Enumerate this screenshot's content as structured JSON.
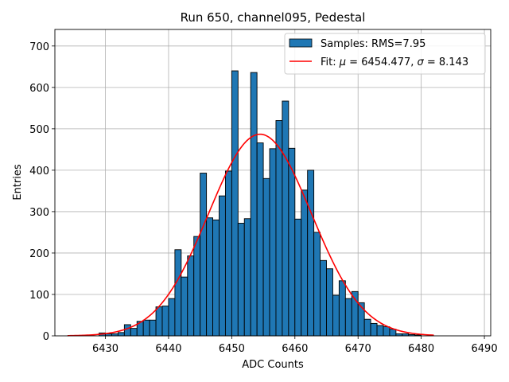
{
  "chart_data": {
    "type": "histogram",
    "title": "Run 650, channel095, Pedestal",
    "xlabel": "ADC Counts",
    "ylabel": "Entries",
    "xlim": [
      6422,
      6491
    ],
    "ylim": [
      0,
      740
    ],
    "xticks": [
      6430,
      6440,
      6450,
      6460,
      6470,
      6480,
      6490
    ],
    "yticks": [
      0,
      100,
      200,
      300,
      400,
      500,
      600,
      700
    ],
    "grid": true,
    "legend_position": "top-right",
    "bin_width": 1,
    "bin_starts": [
      6429,
      6430,
      6431,
      6432,
      6433,
      6434,
      6435,
      6436,
      6437,
      6438,
      6439,
      6440,
      6441,
      6442,
      6443,
      6444,
      6445,
      6446,
      6447,
      6448,
      6449,
      6450,
      6451,
      6452,
      6453,
      6454,
      6455,
      6456,
      6457,
      6458,
      6459,
      6460,
      6461,
      6462,
      6463,
      6464,
      6465,
      6466,
      6467,
      6468,
      6469,
      6470,
      6471,
      6472,
      6473,
      6474,
      6475,
      6476,
      6477,
      6478,
      6479
    ],
    "counts": [
      7,
      5,
      5,
      8,
      27,
      18,
      35,
      38,
      38,
      70,
      72,
      90,
      208,
      142,
      193,
      240,
      393,
      285,
      280,
      338,
      398,
      640,
      272,
      283,
      636,
      466,
      380,
      452,
      520,
      567,
      453,
      282,
      352,
      400,
      250,
      182,
      162,
      98,
      133,
      90,
      107,
      80,
      40,
      30,
      25,
      22,
      16,
      5,
      5,
      3,
      2
    ],
    "series": [
      {
        "name": "Samples: RMS=7.95",
        "kind": "histogram",
        "color": "#1f77b4",
        "edgecolor": "#000000"
      },
      {
        "name": "Fit: μ = 6454.477, σ = 8.143",
        "kind": "gaussian-fit",
        "color": "#ff0000",
        "mu": 6454.477,
        "sigma": 8.143,
        "amplitude": 487,
        "x_range": [
          6424,
          6482
        ]
      }
    ]
  },
  "legend": {
    "samples_label": "Samples: RMS=7.95",
    "fit_label_prefix": "Fit: ",
    "fit_mu_symbol": "μ",
    "fit_mu_text": " = 6454.477, ",
    "fit_sigma_symbol": "σ",
    "fit_sigma_text": " = 8.143"
  }
}
